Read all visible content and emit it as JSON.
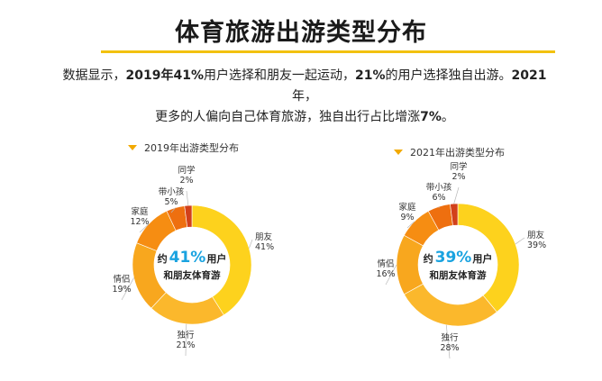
{
  "page": {
    "title": "体育旅游出游类型分布",
    "description": {
      "p1": "数据显示，",
      "b1": "2019年41%",
      "p2": "用户选择和朋友一起运动，",
      "b2": "21%",
      "p3": "的用户选择独自出游。",
      "b3": "2021",
      "p4": "年，",
      "p5": "更多的人偏向自己体育旅游，独自出行占比增涨",
      "b4": "7%",
      "p6": "。"
    }
  },
  "colors": {
    "accent": "#f2c10f",
    "highlight": "#1aa3e0",
    "triangle": "#f2a900"
  },
  "chart_data": [
    {
      "type": "pie",
      "title": "2019年出游类型分布",
      "center": {
        "prefix": "约",
        "percent": "41%",
        "suffix": "用户",
        "line2": "和朋友体育游"
      },
      "slices": [
        {
          "label": "朋友",
          "value": 41,
          "value_text": "41%",
          "color": "#fdd21d"
        },
        {
          "label": "独行",
          "value": 21,
          "value_text": "21%",
          "color": "#fbb82c"
        },
        {
          "label": "情侣",
          "value": 19,
          "value_text": "19%",
          "color": "#f8a71e"
        },
        {
          "label": "家庭",
          "value": 12,
          "value_text": "12%",
          "color": "#f68d12"
        },
        {
          "label": "带小孩",
          "value": 5,
          "value_text": "5%",
          "color": "#ee6f0f"
        },
        {
          "label": "同学",
          "value": 2,
          "value_text": "2%",
          "color": "#d2401a"
        }
      ]
    },
    {
      "type": "pie",
      "title": "2021年出游类型分布",
      "center": {
        "prefix": "约",
        "percent": "39%",
        "suffix": "用户",
        "line2": "和朋友体育游"
      },
      "slices": [
        {
          "label": "朋友",
          "value": 39,
          "value_text": "39%",
          "color": "#fdd21d"
        },
        {
          "label": "独行",
          "value": 28,
          "value_text": "28%",
          "color": "#fbb82c"
        },
        {
          "label": "情侣",
          "value": 16,
          "value_text": "16%",
          "color": "#f8a71e"
        },
        {
          "label": "家庭",
          "value": 9,
          "value_text": "9%",
          "color": "#f68d12"
        },
        {
          "label": "带小孩",
          "value": 6,
          "value_text": "6%",
          "color": "#ee6f0f"
        },
        {
          "label": "同学",
          "value": 2,
          "value_text": "2%",
          "color": "#d2401a"
        }
      ]
    }
  ]
}
